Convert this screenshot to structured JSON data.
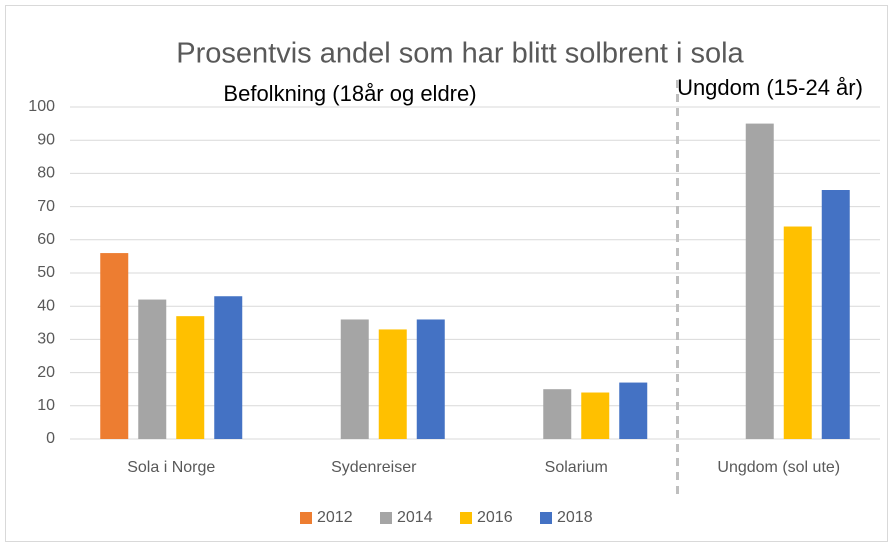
{
  "chart_data": {
    "type": "bar",
    "title": "Prosentvis andel som har blitt solbrent i sola",
    "annotations": [
      "Befolkning (18år og eldre)",
      "Ungdom (15-24 år)"
    ],
    "categories": [
      "Sola i Norge",
      "Sydenreiser",
      "Solarium",
      "Ungdom (sol ute)"
    ],
    "series": [
      {
        "name": "2012",
        "color": "#ed7d31",
        "values": [
          56,
          null,
          null,
          null
        ]
      },
      {
        "name": "2014",
        "color": "#a5a5a5",
        "values": [
          42,
          36,
          15,
          95
        ]
      },
      {
        "name": "2016",
        "color": "#ffc000",
        "values": [
          37,
          33,
          14,
          64
        ]
      },
      {
        "name": "2018",
        "color": "#4472c4",
        "values": [
          43,
          36,
          17,
          75
        ]
      }
    ],
    "ylim": [
      0,
      100
    ],
    "yticks": [
      0,
      10,
      20,
      30,
      40,
      50,
      60,
      70,
      80,
      90,
      100
    ],
    "grid": true,
    "legend": "bottom"
  }
}
